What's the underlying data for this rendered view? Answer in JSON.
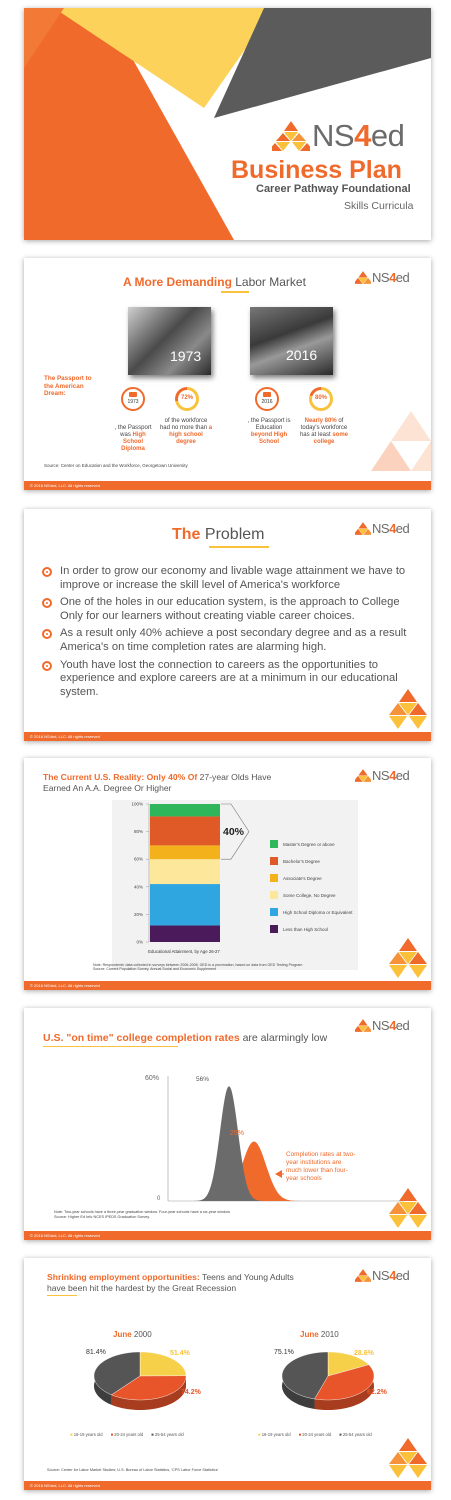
{
  "brand": {
    "logo_ns": "NS",
    "logo_four": "4",
    "logo_ed": "ed"
  },
  "footer_text": "© 2016 NS4ed, LLC. All rights reserved",
  "slide1": {
    "title": "Business Plan",
    "subtitle": "Career Pathway Foundational",
    "subtitle2": "Skills Curricula"
  },
  "slide2": {
    "title_bold": "A More Demanding",
    "title_rest": " Labor Market",
    "photo1_year": "1973",
    "photo2_year": "2016",
    "passport_label": "The Passport to the American Dream:",
    "stat1_icon_year": "1973",
    "stat1_pct": "72%",
    "stat1_caption_pre": ", the Passport was",
    "stat1_caption_bold": "High School Diploma",
    "stat2_caption_pre": "of the workforce had no more than",
    "stat2_caption_bold": "a high school degree",
    "stat3_icon_year": "2016",
    "stat3_pct": "80%",
    "stat3_caption_pre": ", the Passport is Education",
    "stat3_caption_bold": "beyond High School",
    "stat4_caption_bold": "Nearly 80%",
    "stat4_caption_mid": " of today's workforce has at least ",
    "stat4_caption_bold2": "some college",
    "source": "Source: Center on Education and the Workforce, Georgetown University"
  },
  "slide3": {
    "title_bold": "The",
    "title_rest": " Problem",
    "bullets": [
      "In order to grow our economy and livable wage attainment we have to improve or increase the skill level of America's workforce",
      "One of the holes in our education system, is the approach to College Only for our learners without creating viable career choices.",
      "As a result only 40% achieve a post secondary degree and as a result America's on time completion rates are alarming high.",
      "Youth have lost the connection to careers as the opportunities to experience and explore careers are at a minimum in our educational system."
    ]
  },
  "slide4": {
    "title_bold": "The Current U.S. Reality: Only 40% Of",
    "title_rest": " 27-year Olds Have",
    "title_line2": "Earned An A.A. Degree Or Higher",
    "callout": "40%",
    "xlabel": "Educational Attainment, by Age 26-27",
    "note1": "Note: Respondents' data collected in surveys between 2006-2008. GED is a proximation, based on data from GED Testing Program",
    "note2": "Source: Current Population Survey, Annual Social and Economic Supplement"
  },
  "chart_data": [
    {
      "type": "bar",
      "title": "",
      "xlabel": "Educational Attainment, by Age 26-27",
      "ylabel": "",
      "yticks": [
        "0%",
        "20%",
        "40%",
        "60%",
        "80%",
        "100%"
      ],
      "ylim": [
        0,
        100
      ],
      "stacked": true,
      "series": [
        {
          "name": "Less than High School",
          "value": 12,
          "color": "#4a1a5a"
        },
        {
          "name": "High School Diploma or Equivalent",
          "value": 30,
          "color": "#2fa6e0"
        },
        {
          "name": "Some College, No Degree",
          "value": 18,
          "color": "#fde79a"
        },
        {
          "name": "Associate's Degree",
          "value": 10,
          "color": "#f3b21b"
        },
        {
          "name": "Bachelor's Degree",
          "value": 21,
          "color": "#e05a28"
        },
        {
          "name": "Master's Degree or above",
          "value": 9,
          "color": "#2fb55a"
        }
      ]
    },
    {
      "type": "area",
      "title": "U.S. \"on time\" college completion rates are alarmingly low",
      "yticks": [
        "0",
        "60%"
      ],
      "ylim": [
        0,
        60
      ],
      "series": [
        {
          "name": "four-year",
          "peak": 56,
          "label": "56%",
          "color": "#6b6b6b"
        },
        {
          "name": "two-year",
          "peak": 29,
          "label": "29%",
          "color": "#f06a2c"
        }
      ]
    },
    {
      "type": "pie",
      "title": "June 2000",
      "slices": [
        {
          "name": "16-19 years old",
          "value": 51.4,
          "label": "51.4%",
          "color": "#f7d04a"
        },
        {
          "name": "20-24 years old",
          "value": 74.2,
          "label": "74.2%",
          "color": "#e8552a"
        },
        {
          "name": "25-54 years old",
          "value": 81.4,
          "label": "81.4%",
          "color": "#555555"
        }
      ]
    },
    {
      "type": "pie",
      "title": "June 2010",
      "slices": [
        {
          "name": "16-19 years old",
          "value": 28.6,
          "label": "28.6%",
          "color": "#f7d04a"
        },
        {
          "name": "20-24 years old",
          "value": 62.2,
          "label": "62.2%",
          "color": "#e8552a"
        },
        {
          "name": "25-54 years old",
          "value": 75.1,
          "label": "75.1%",
          "color": "#555555"
        }
      ]
    }
  ],
  "slide5": {
    "title_bold": "U.S. \"on time\" college completion rates",
    "title_rest": " are alarmingly low",
    "ytick_top": "60%",
    "ytick_bottom": "0",
    "peak1_label": "56%",
    "peak2_label": "29%",
    "annotation": "Completion rates at two-year institutions are much lower than four-year schools",
    "note1": "Note: Two-year schools have a three-year graduation window. Four-year schools have a six-year window",
    "note2": "Source: Higher Ed Info NCES IPEDS Graduation Survey."
  },
  "slide6": {
    "title_bold": "Shrinking employment opportunities:",
    "title_rest": " Teens and Young Adults",
    "title_line2": "have been hit the hardest by the Great Recession",
    "pie1_title_bold": "June",
    "pie1_title_rest": " 2000",
    "pie1_labels": [
      "81.4%",
      "51.4%",
      "74.2%"
    ],
    "pie2_title_bold": "June",
    "pie2_title_rest": " 2010",
    "pie2_labels": [
      "75.1%",
      "28.6%",
      "62.2%"
    ],
    "legend": [
      "16-19 years old",
      "20-24 years old",
      "25-54 years old"
    ],
    "source": "Source: Center for Labor Market Studies; U.S. Bureau of Labor Statistics, 'CPS Labor Force Statistics'"
  }
}
